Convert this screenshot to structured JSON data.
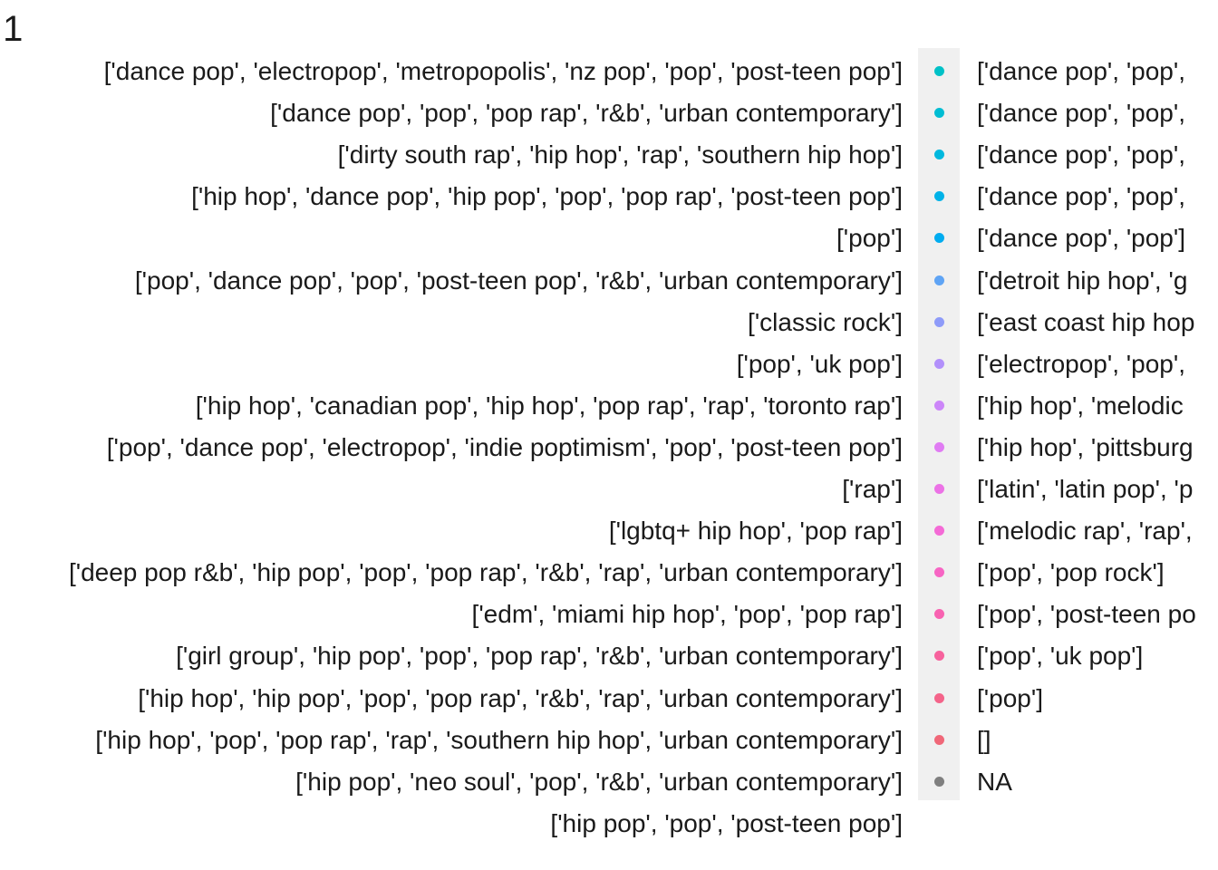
{
  "chart_data": {
    "type": "table",
    "heading": ".1",
    "left_column_rows": [
      "['dance pop', 'electropop', 'metropopolis', 'nz pop', 'pop', 'post-teen pop']",
      "['dance pop', 'pop', 'pop rap', 'r&b', 'urban contemporary']",
      "['dirty south rap', 'hip hop', 'rap', 'southern hip hop']",
      "['hip hop', 'dance pop', 'hip pop', 'pop', 'pop rap', 'post-teen pop']",
      "['pop']",
      "['pop', 'dance pop', 'pop', 'post-teen pop', 'r&b', 'urban contemporary']",
      "['classic rock']",
      "['pop', 'uk pop']",
      "['hip hop', 'canadian pop', 'hip hop', 'pop rap', 'rap', 'toronto rap']",
      "['pop', 'dance pop', 'electropop', 'indie poptimism', 'pop', 'post-teen pop']",
      "['rap']",
      "['lgbtq+ hip hop', 'pop rap']",
      "['deep pop r&b', 'hip pop', 'pop', 'pop rap', 'r&b', 'rap', 'urban contemporary']",
      "['edm', 'miami hip hop', 'pop', 'pop rap']",
      "['girl group', 'hip pop', 'pop', 'pop rap', 'r&b', 'urban contemporary']",
      "['hip hop', 'hip pop', 'pop', 'pop rap', 'r&b', 'rap', 'urban contemporary']",
      "['hip hop', 'pop', 'pop rap', 'rap', 'southern hip hop', 'urban contemporary']",
      "['hip pop', 'neo soul', 'pop', 'r&b', 'urban contemporary']",
      "['hip pop', 'pop', 'post-teen pop']"
    ],
    "legend_entries": [
      {
        "label": "['dance pop', 'pop', ",
        "color": "#00C1C7"
      },
      {
        "label": "['dance pop', 'pop', ",
        "color": "#00BDD3"
      },
      {
        "label": "['dance pop', 'pop', ",
        "color": "#00B8DE"
      },
      {
        "label": "['dance pop', 'pop', ",
        "color": "#00B2E8"
      },
      {
        "label": "['dance pop', 'pop']",
        "color": "#00ACF0"
      },
      {
        "label": "['detroit hip hop', 'g",
        "color": "#5FA4F5"
      },
      {
        "label": "['east coast hip hop",
        "color": "#8E9BF9"
      },
      {
        "label": "['electropop', 'pop', ",
        "color": "#B290FB"
      },
      {
        "label": "['hip hop', 'melodic ",
        "color": "#CC86F9"
      },
      {
        "label": "['hip hop', 'pittsburg",
        "color": "#E07CF3"
      },
      {
        "label": "['latin', 'latin pop', 'p",
        "color": "#EC72E6"
      },
      {
        "label": "['melodic rap', 'rap', ",
        "color": "#F46AD6"
      },
      {
        "label": "['pop', 'pop rock']",
        "color": "#F765C4"
      },
      {
        "label": "['pop', 'post-teen po",
        "color": "#F862B1"
      },
      {
        "label": "['pop', 'uk pop']",
        "color": "#F7629D"
      },
      {
        "label": "['pop']",
        "color": "#F4648A"
      },
      {
        "label": "[]",
        "color": "#F06778"
      },
      {
        "label": "NA",
        "color": "#7F7F7F"
      }
    ]
  }
}
